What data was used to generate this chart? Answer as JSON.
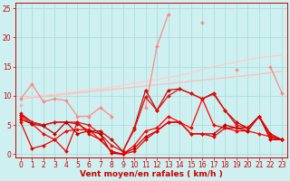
{
  "background_color": "#cff0f0",
  "grid_color": "#aadddd",
  "xlabel": "Vent moyen/en rafales ( km/h )",
  "xlabel_color": "#cc0000",
  "xlabel_fontsize": 6.5,
  "tick_color": "#cc0000",
  "tick_fontsize": 5.5,
  "xlim": [
    -0.5,
    23.5
  ],
  "ylim": [
    -0.5,
    26
  ],
  "yticks": [
    0,
    5,
    10,
    15,
    20,
    25
  ],
  "xticks": [
    0,
    1,
    2,
    3,
    4,
    5,
    6,
    7,
    8,
    9,
    10,
    11,
    12,
    13,
    14,
    15,
    16,
    17,
    18,
    19,
    20,
    21,
    22,
    23
  ],
  "series": [
    {
      "x": [
        0,
        1,
        2,
        3,
        4,
        5,
        6,
        7,
        8,
        9,
        10,
        11,
        12,
        13,
        14,
        15,
        16,
        17,
        18,
        19,
        20,
        21,
        22,
        23
      ],
      "y": [
        9.5,
        9.7,
        9.9,
        10.1,
        10.3,
        10.5,
        10.7,
        10.9,
        11.1,
        11.3,
        11.5,
        11.7,
        11.9,
        12.1,
        12.3,
        12.5,
        12.7,
        12.9,
        13.1,
        13.3,
        13.5,
        13.7,
        14.0,
        14.2
      ],
      "color": "#ffbbbb",
      "linewidth": 0.9,
      "marker": null
    },
    {
      "x": [
        0,
        1,
        2,
        3,
        4,
        5,
        6,
        7,
        8,
        9,
        10,
        11,
        12,
        13,
        14,
        15,
        16,
        17,
        18,
        19,
        20,
        21,
        22,
        23
      ],
      "y": [
        9.5,
        9.9,
        10.1,
        10.3,
        10.5,
        10.7,
        11.0,
        11.2,
        11.5,
        11.8,
        12.2,
        12.5,
        12.8,
        13.2,
        13.5,
        14.0,
        14.5,
        15.0,
        15.4,
        15.8,
        16.2,
        16.5,
        16.8,
        17.0
      ],
      "color": "#ffcccc",
      "linewidth": 0.9,
      "marker": null
    },
    {
      "x": [
        0,
        1,
        2,
        3,
        4,
        5,
        6,
        7,
        8,
        9,
        10,
        11,
        12,
        13,
        14,
        15,
        16,
        17,
        18,
        19,
        20,
        21,
        22,
        23
      ],
      "y": [
        9.5,
        12.0,
        9.0,
        9.5,
        9.2,
        6.5,
        6.5,
        8.0,
        6.5,
        null,
        null,
        8.0,
        18.5,
        24.0,
        null,
        null,
        22.5,
        null,
        null,
        14.5,
        null,
        null,
        15.0,
        10.5
      ],
      "color": "#ff8888",
      "linewidth": 0.9,
      "marker": "D",
      "markersize": 2
    },
    {
      "x": [
        0,
        1,
        2,
        3,
        4,
        5,
        6,
        7,
        8,
        9,
        10,
        11,
        12,
        13,
        14,
        15,
        16,
        17,
        18,
        19,
        20,
        21,
        22,
        23
      ],
      "y": [
        8.5,
        null,
        null,
        null,
        null,
        null,
        null,
        null,
        null,
        null,
        null,
        null,
        null,
        null,
        null,
        null,
        null,
        null,
        null,
        null,
        null,
        null,
        null,
        null
      ],
      "color": "#ffaaaa",
      "linewidth": 0.9,
      "marker": "D",
      "markersize": 2
    },
    {
      "x": [
        0,
        1,
        2,
        3,
        4,
        5,
        6,
        7,
        8,
        9,
        10,
        11,
        12,
        13,
        14,
        15,
        16,
        17,
        18,
        19,
        20,
        21,
        22,
        23
      ],
      "y": [
        6.8,
        5.5,
        5.0,
        5.5,
        5.5,
        5.2,
        4.0,
        4.0,
        2.5,
        0.5,
        4.5,
        11.0,
        7.5,
        11.0,
        11.2,
        10.4,
        9.5,
        10.5,
        7.5,
        5.5,
        4.5,
        6.5,
        3.5,
        2.5
      ],
      "color": "#cc0000",
      "linewidth": 0.9,
      "marker": "D",
      "markersize": 2
    },
    {
      "x": [
        0,
        1,
        2,
        3,
        4,
        5,
        6,
        7,
        8,
        9,
        10,
        11,
        12,
        13,
        14,
        15,
        16,
        17,
        18,
        19,
        20,
        21,
        22,
        23
      ],
      "y": [
        7.0,
        5.5,
        5.0,
        5.5,
        5.5,
        5.5,
        5.0,
        3.5,
        1.5,
        0.5,
        4.2,
        9.8,
        7.5,
        10.0,
        11.2,
        10.4,
        9.5,
        10.3,
        7.5,
        5.0,
        4.5,
        6.5,
        3.2,
        2.5
      ],
      "color": "#dd1111",
      "linewidth": 0.9,
      "marker": "D",
      "markersize": 2
    },
    {
      "x": [
        0,
        1,
        2,
        3,
        4,
        5,
        6,
        7,
        8,
        9,
        10,
        11,
        12,
        13,
        14,
        15,
        16,
        17,
        18,
        19,
        20,
        21,
        22,
        23
      ],
      "y": [
        6.5,
        5.2,
        3.5,
        2.5,
        4.0,
        4.2,
        4.2,
        2.5,
        0.5,
        0.0,
        1.5,
        4.0,
        4.5,
        6.5,
        5.5,
        4.5,
        9.5,
        5.0,
        4.5,
        4.0,
        4.0,
        3.5,
        3.0,
        2.5
      ],
      "color": "#ff0000",
      "linewidth": 0.9,
      "marker": "D",
      "markersize": 2
    },
    {
      "x": [
        0,
        1,
        2,
        3,
        4,
        5,
        6,
        7,
        8,
        9,
        10,
        11,
        12,
        13,
        14,
        15,
        16,
        17,
        18,
        19,
        20,
        21,
        22,
        23
      ],
      "y": [
        6.0,
        5.2,
        4.8,
        3.5,
        5.5,
        3.5,
        4.0,
        3.5,
        0.2,
        0.0,
        1.0,
        3.0,
        4.0,
        5.5,
        5.5,
        3.5,
        3.5,
        3.5,
        5.0,
        4.5,
        4.0,
        6.5,
        2.5,
        2.5
      ],
      "color": "#bb0000",
      "linewidth": 0.9,
      "marker": "D",
      "markersize": 2
    },
    {
      "x": [
        0,
        1,
        2,
        3,
        4,
        5,
        6,
        7,
        8,
        9,
        10,
        11,
        12,
        13,
        14,
        15,
        16,
        17,
        18,
        19,
        20,
        21,
        22,
        23
      ],
      "y": [
        5.5,
        1.0,
        1.5,
        2.5,
        0.5,
        5.5,
        3.5,
        2.5,
        0.5,
        0.0,
        0.5,
        2.5,
        4.0,
        5.5,
        5.5,
        3.5,
        3.5,
        3.0,
        4.5,
        4.5,
        4.5,
        6.5,
        2.8,
        2.5
      ],
      "color": "#ee0000",
      "linewidth": 0.9,
      "marker": "D",
      "markersize": 2
    }
  ]
}
